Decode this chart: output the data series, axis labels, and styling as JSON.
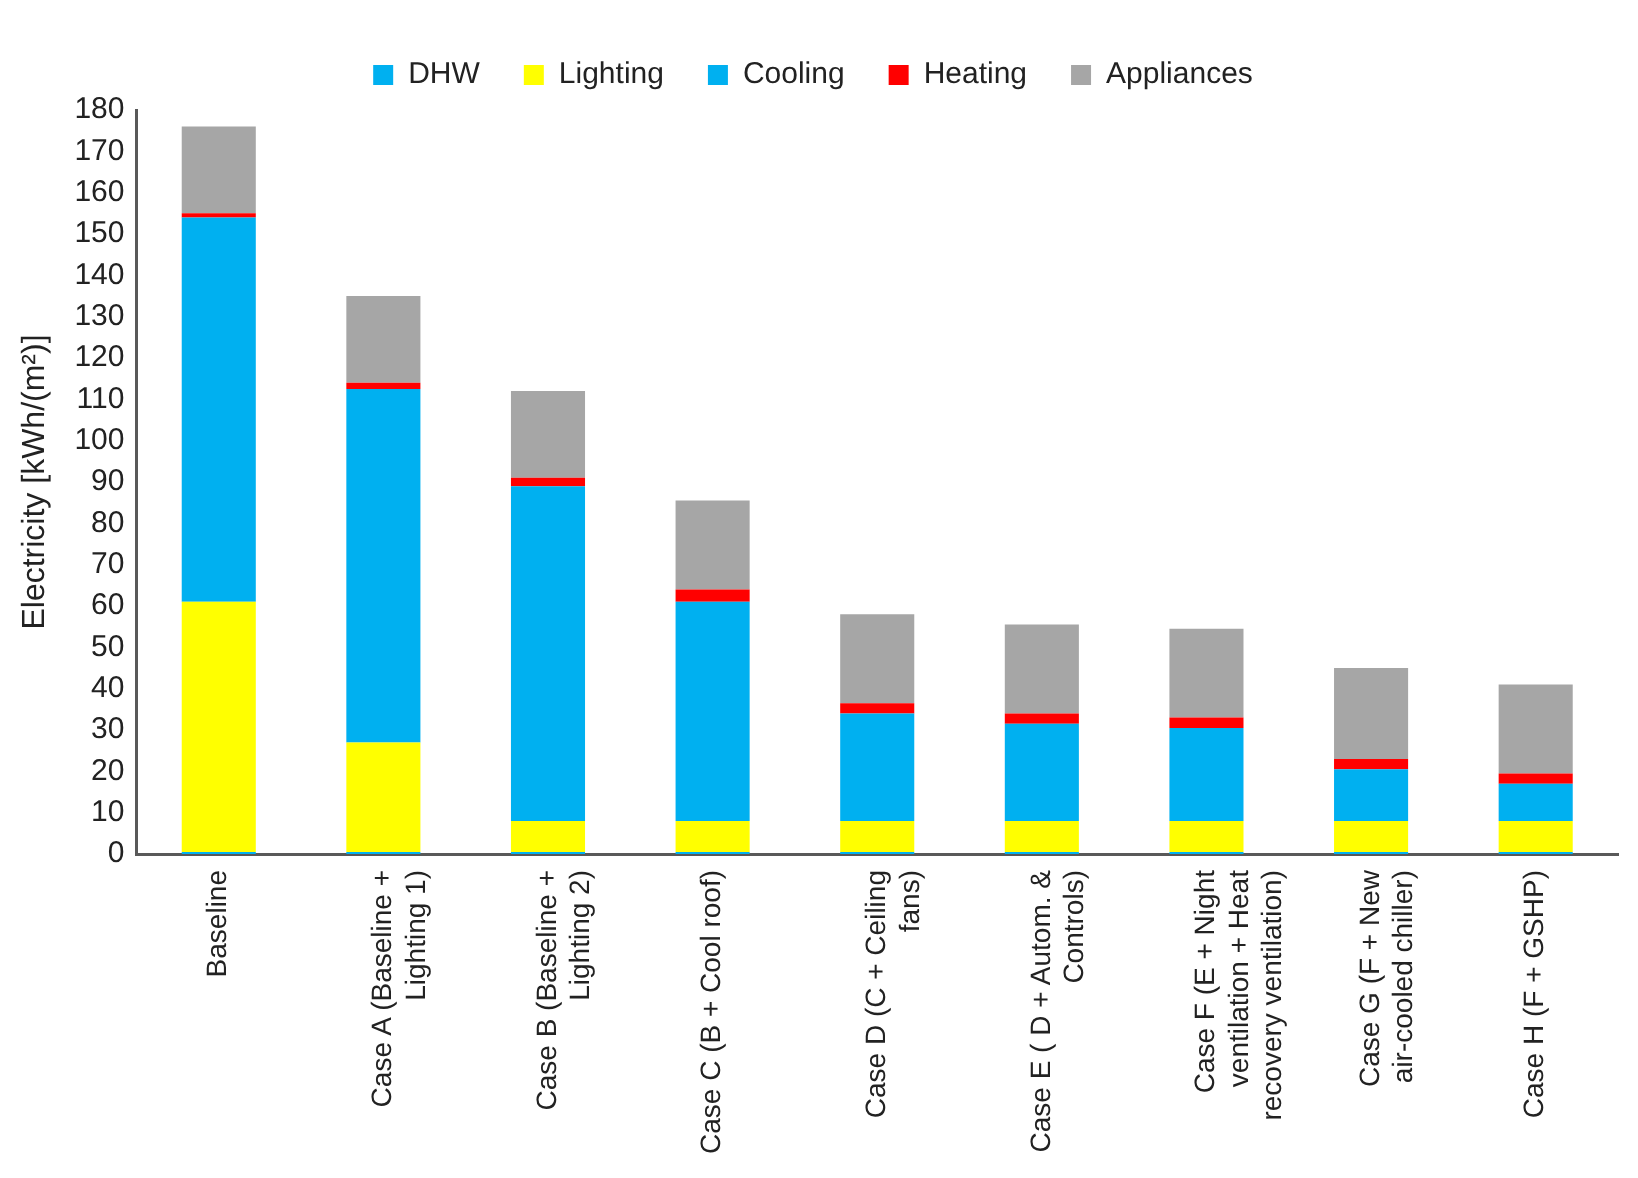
{
  "chart_data": {
    "type": "bar",
    "stacked": true,
    "ylabel": "Electricity [kWh/(m²)]",
    "categories": [
      "Baseline",
      "Case A (Baseline + Lighting 1)",
      "Case B (Baseline + Lighting 2)",
      "Case C (B + Cool roof)",
      "Case D (C + Ceiling fans)",
      "Case E ( D + Autom. & Controls)",
      "Case F (E + Night ventilation + Heat recovery ventilation)",
      "Case G (F + New air-cooled chiller)",
      "Case H (F + GSHP)"
    ],
    "series": [
      {
        "name": "DHW",
        "color": "#00b0f0",
        "values": [
          0.5,
          0.5,
          0.5,
          0.5,
          0.5,
          0.5,
          0.5,
          0.5,
          0.5
        ]
      },
      {
        "name": "Lighting",
        "color": "#ffff00",
        "values": [
          60.5,
          26.5,
          7.5,
          7.5,
          7.5,
          7.5,
          7.5,
          7.5,
          7.5
        ]
      },
      {
        "name": "Cooling",
        "color": "#00b0f0",
        "values": [
          93,
          85.5,
          81,
          53,
          26,
          23.5,
          22.5,
          12.5,
          9
        ]
      },
      {
        "name": "Heating",
        "color": "#ff0000",
        "values": [
          1,
          1.5,
          2,
          3,
          2.5,
          2.5,
          2.5,
          2.5,
          2.5
        ]
      },
      {
        "name": "Appliances",
        "color": "#a6a6a6",
        "values": [
          21,
          21,
          21,
          21.5,
          21.5,
          21.5,
          21.5,
          22,
          21.5
        ]
      }
    ],
    "ylim": [
      0,
      180
    ],
    "yticks": [
      0,
      10,
      20,
      30,
      40,
      50,
      60,
      70,
      80,
      90,
      100,
      110,
      120,
      130,
      140,
      150,
      160,
      170,
      180
    ],
    "grid": false,
    "legend": "top"
  }
}
